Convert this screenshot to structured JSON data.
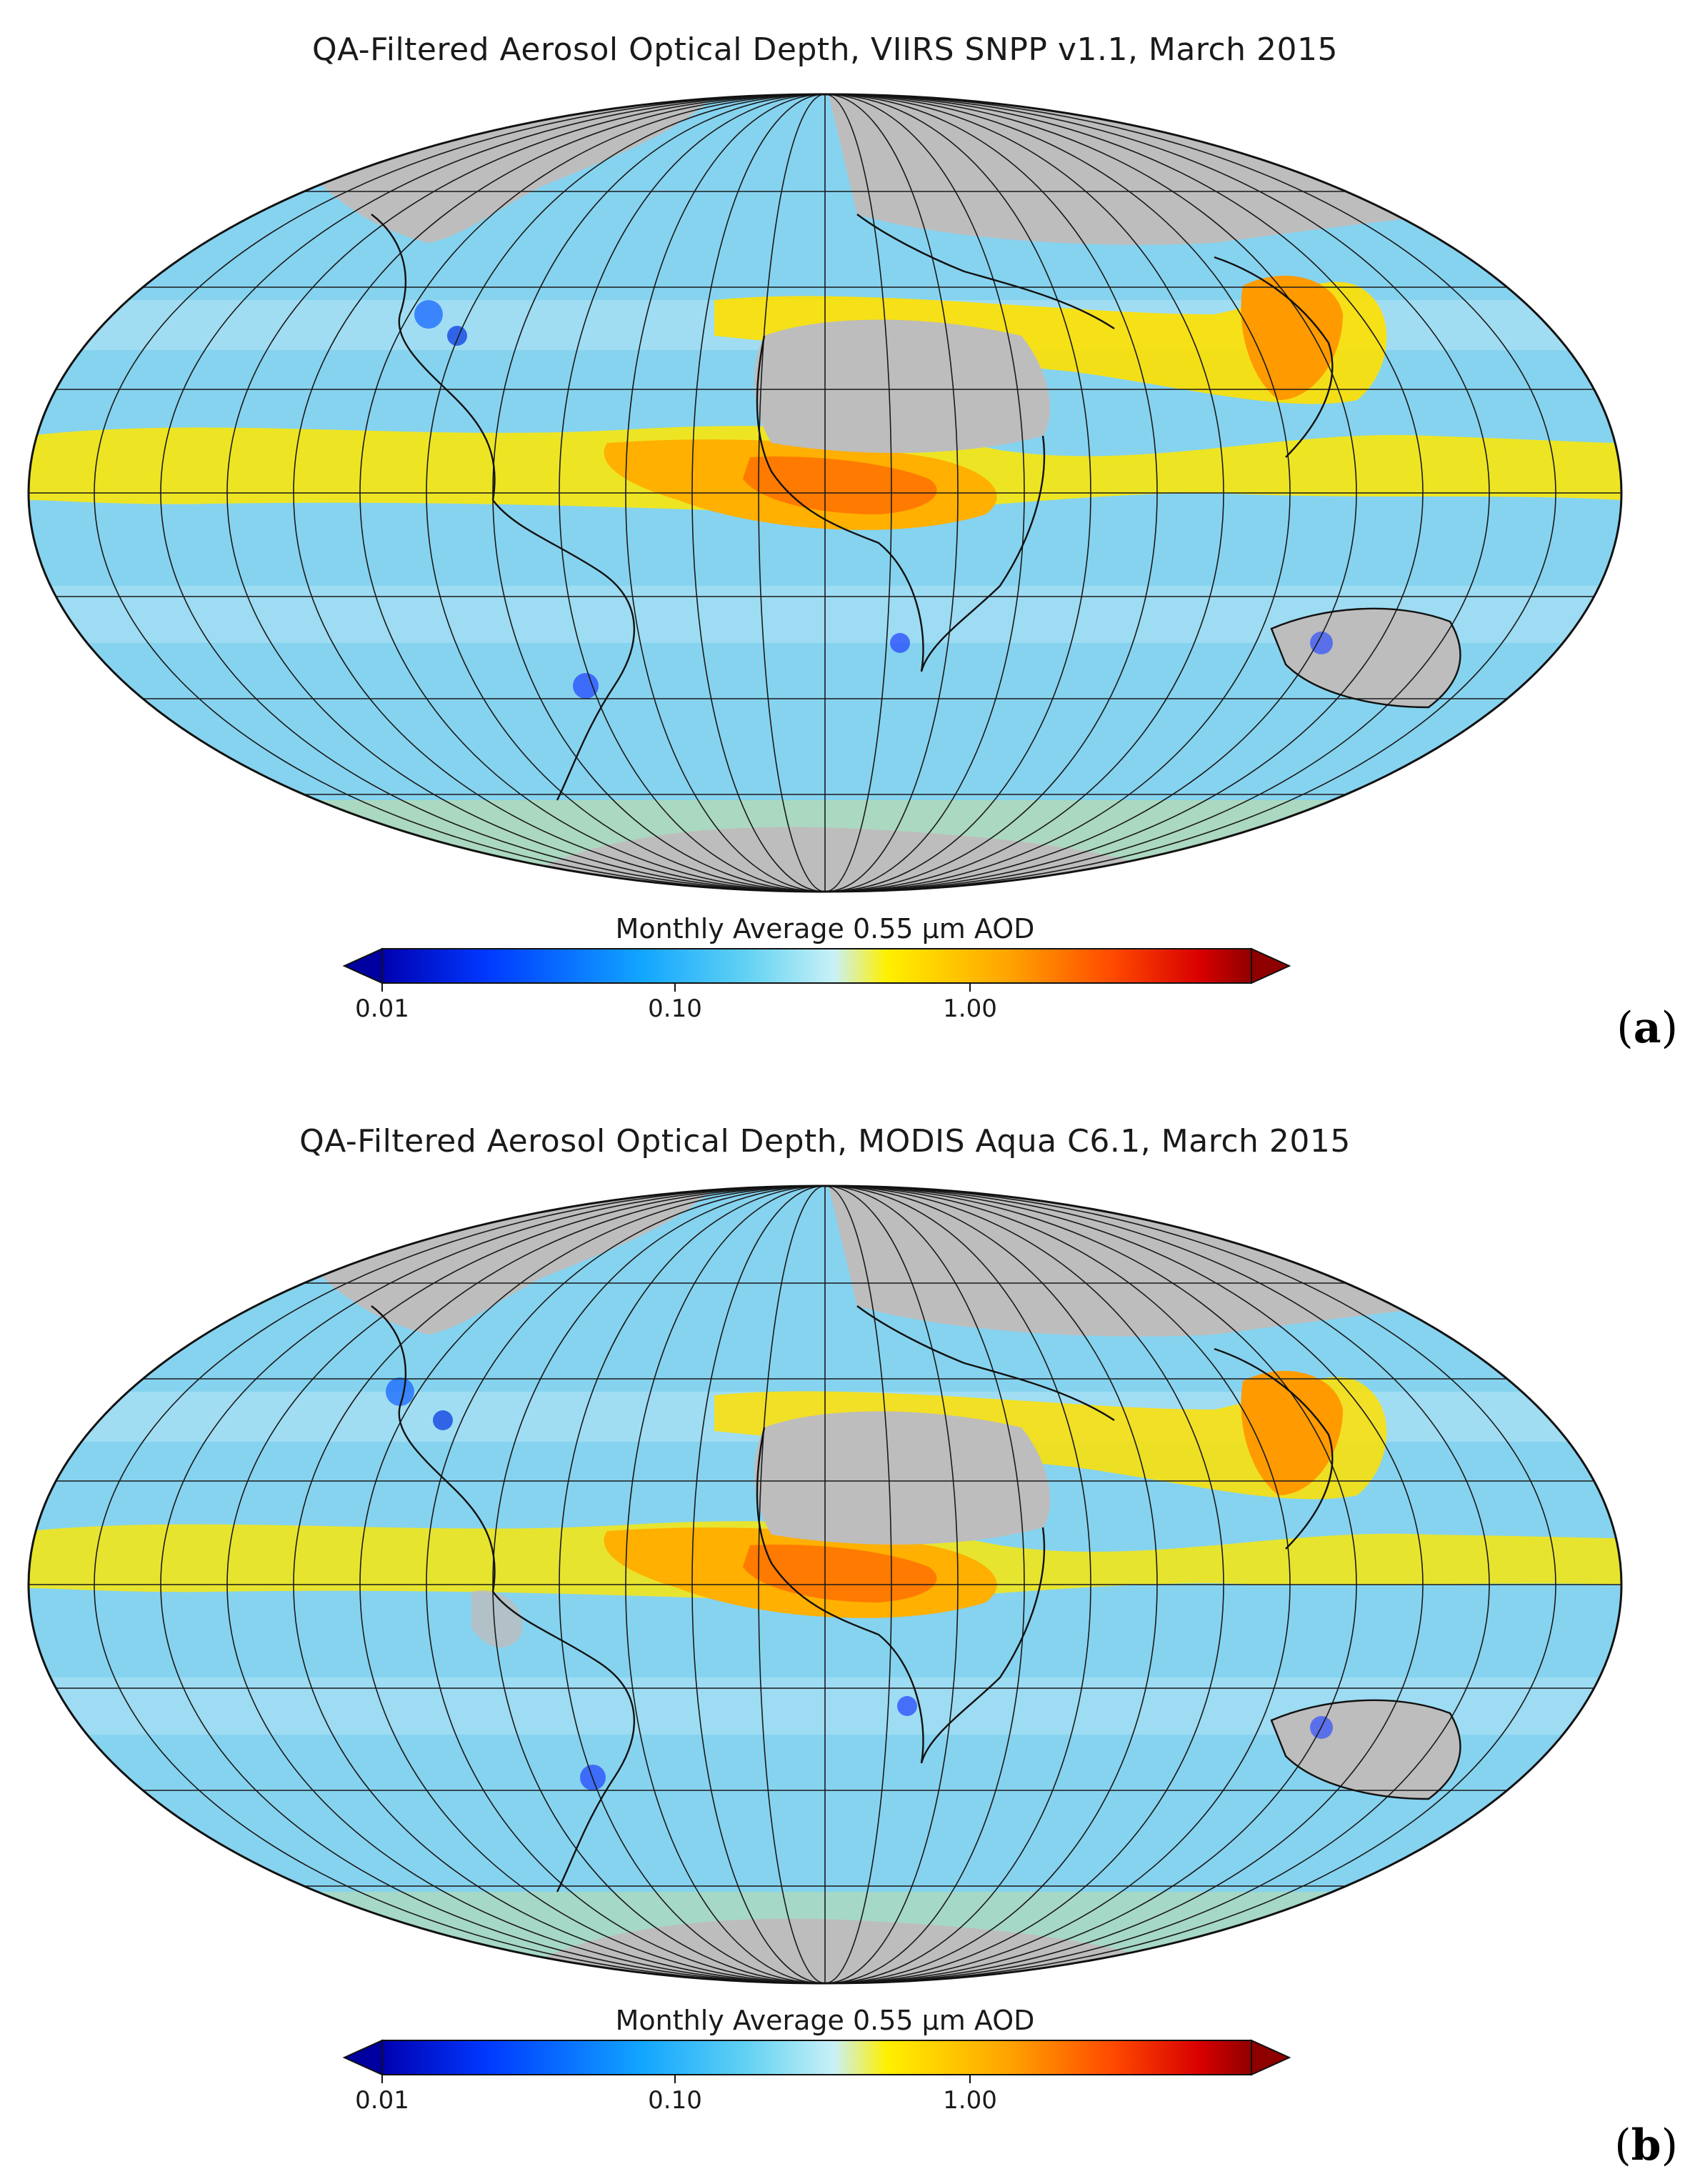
{
  "panels": [
    {
      "id": "a",
      "title": "QA-Filtered Aerosol Optical Depth, VIIRS SNPP v1.1, March 2015",
      "label": "a",
      "colorbar_title": "Monthly Average 0.55 µm AOD"
    },
    {
      "id": "b",
      "title": "QA-Filtered Aerosol Optical Depth, MODIS Aqua C6.1, March 2015",
      "label": "b",
      "colorbar_title": "Monthly Average 0.55 µm AOD"
    }
  ],
  "colorbar": {
    "scale": "log",
    "range": [
      0.01,
      5.0
    ],
    "ticks": [
      {
        "value": 0.01,
        "label": "0.01"
      },
      {
        "value": 0.1,
        "label": "0.10"
      },
      {
        "value": 1.0,
        "label": "1.00"
      }
    ],
    "extend": "both",
    "colors": [
      "#00008f",
      "#0020e0",
      "#0a7cff",
      "#2db4f0",
      "#a0e6f5",
      "#fff200",
      "#ffb000",
      "#ff6000",
      "#e81000",
      "#9a0000"
    ]
  },
  "map": {
    "projection": "mollweide",
    "graticule_spacing_deg": 15,
    "land_nodata_color": "#bdbdbd",
    "ocean_base_color": "#8fd6f0"
  }
}
